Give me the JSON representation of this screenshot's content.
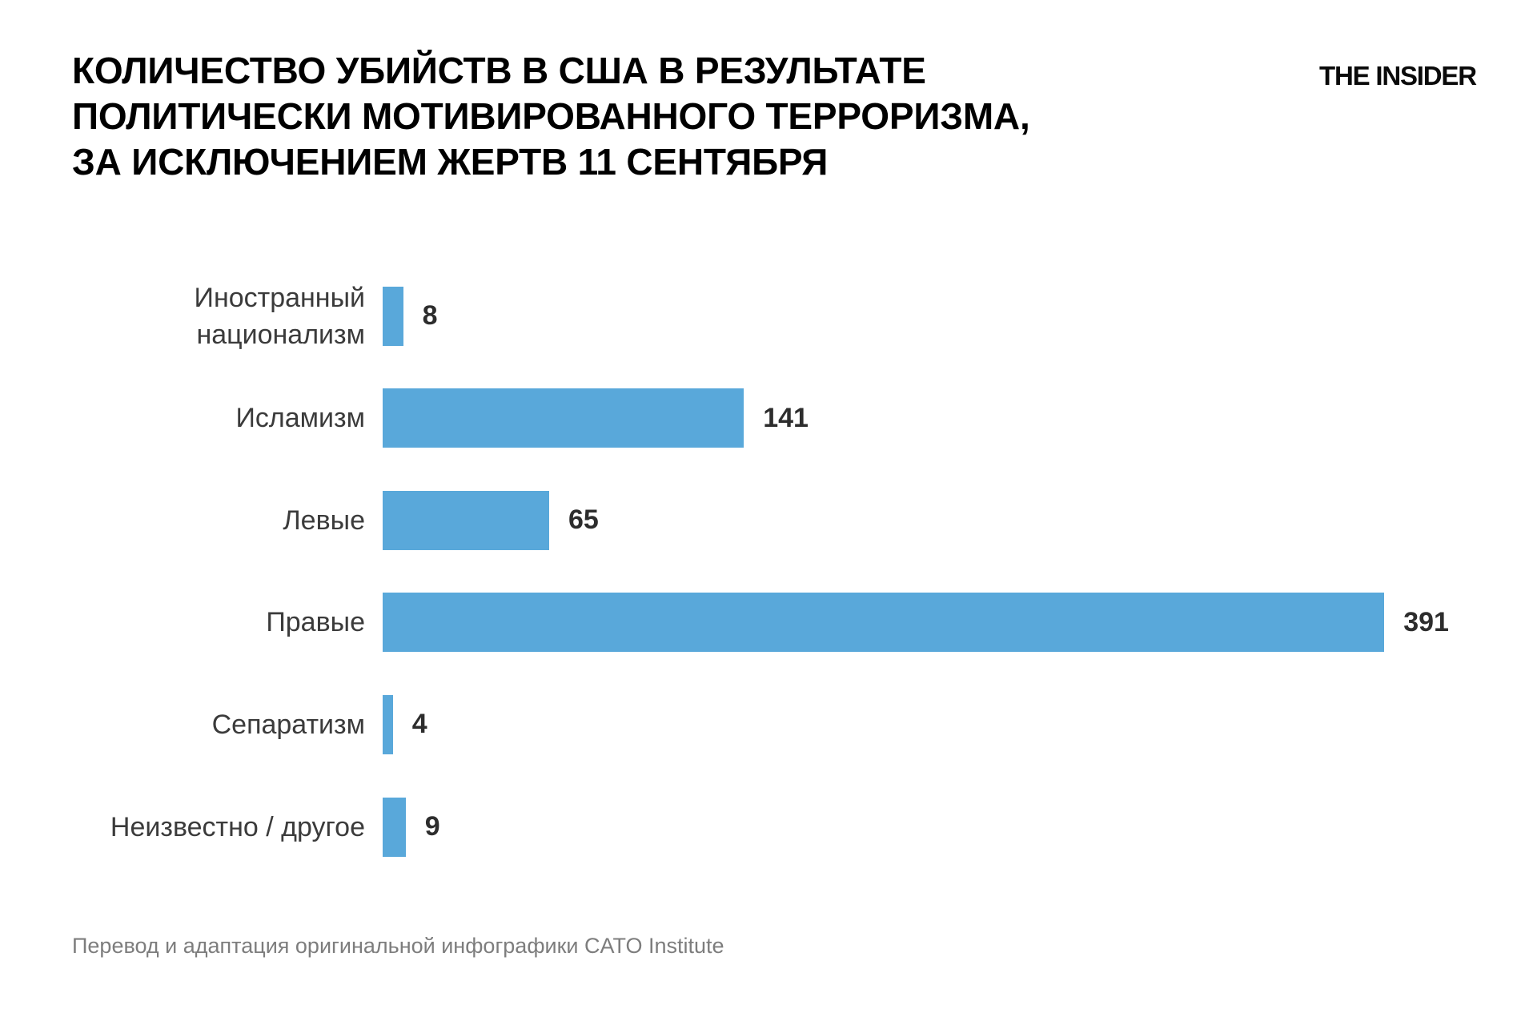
{
  "header": {
    "title_lines": [
      "КОЛИЧЕСТВО УБИЙСТВ В США В РЕЗУЛЬТАТЕ",
      "ПОЛИТИЧЕСКИ МОТИВИРОВАННОГО ТЕРРОРИЗМА,",
      "ЗА ИСКЛЮЧЕНИЕМ ЖЕРТВ 11 СЕНТЯБРЯ"
    ],
    "logo": "THE INSIDER"
  },
  "chart_data": {
    "type": "bar",
    "orientation": "horizontal",
    "categories": [
      "Иностранный национализм",
      "Исламизм",
      "Левые",
      "Правые",
      "Сепаратизм",
      "Неизвестно / другое"
    ],
    "values": [
      8,
      141,
      65,
      391,
      4,
      9
    ],
    "value_labels": [
      "8",
      "141",
      "65",
      "391",
      "4",
      "9"
    ],
    "xlim": [
      0,
      391
    ],
    "grid": false,
    "legend": false,
    "bar_color": "#59a8da",
    "label_color": "#3b3b3b",
    "value_color": "#2d2d2d"
  },
  "footer": {
    "source": "Перевод и адаптация оригинальной инфографики CATO Institute"
  }
}
